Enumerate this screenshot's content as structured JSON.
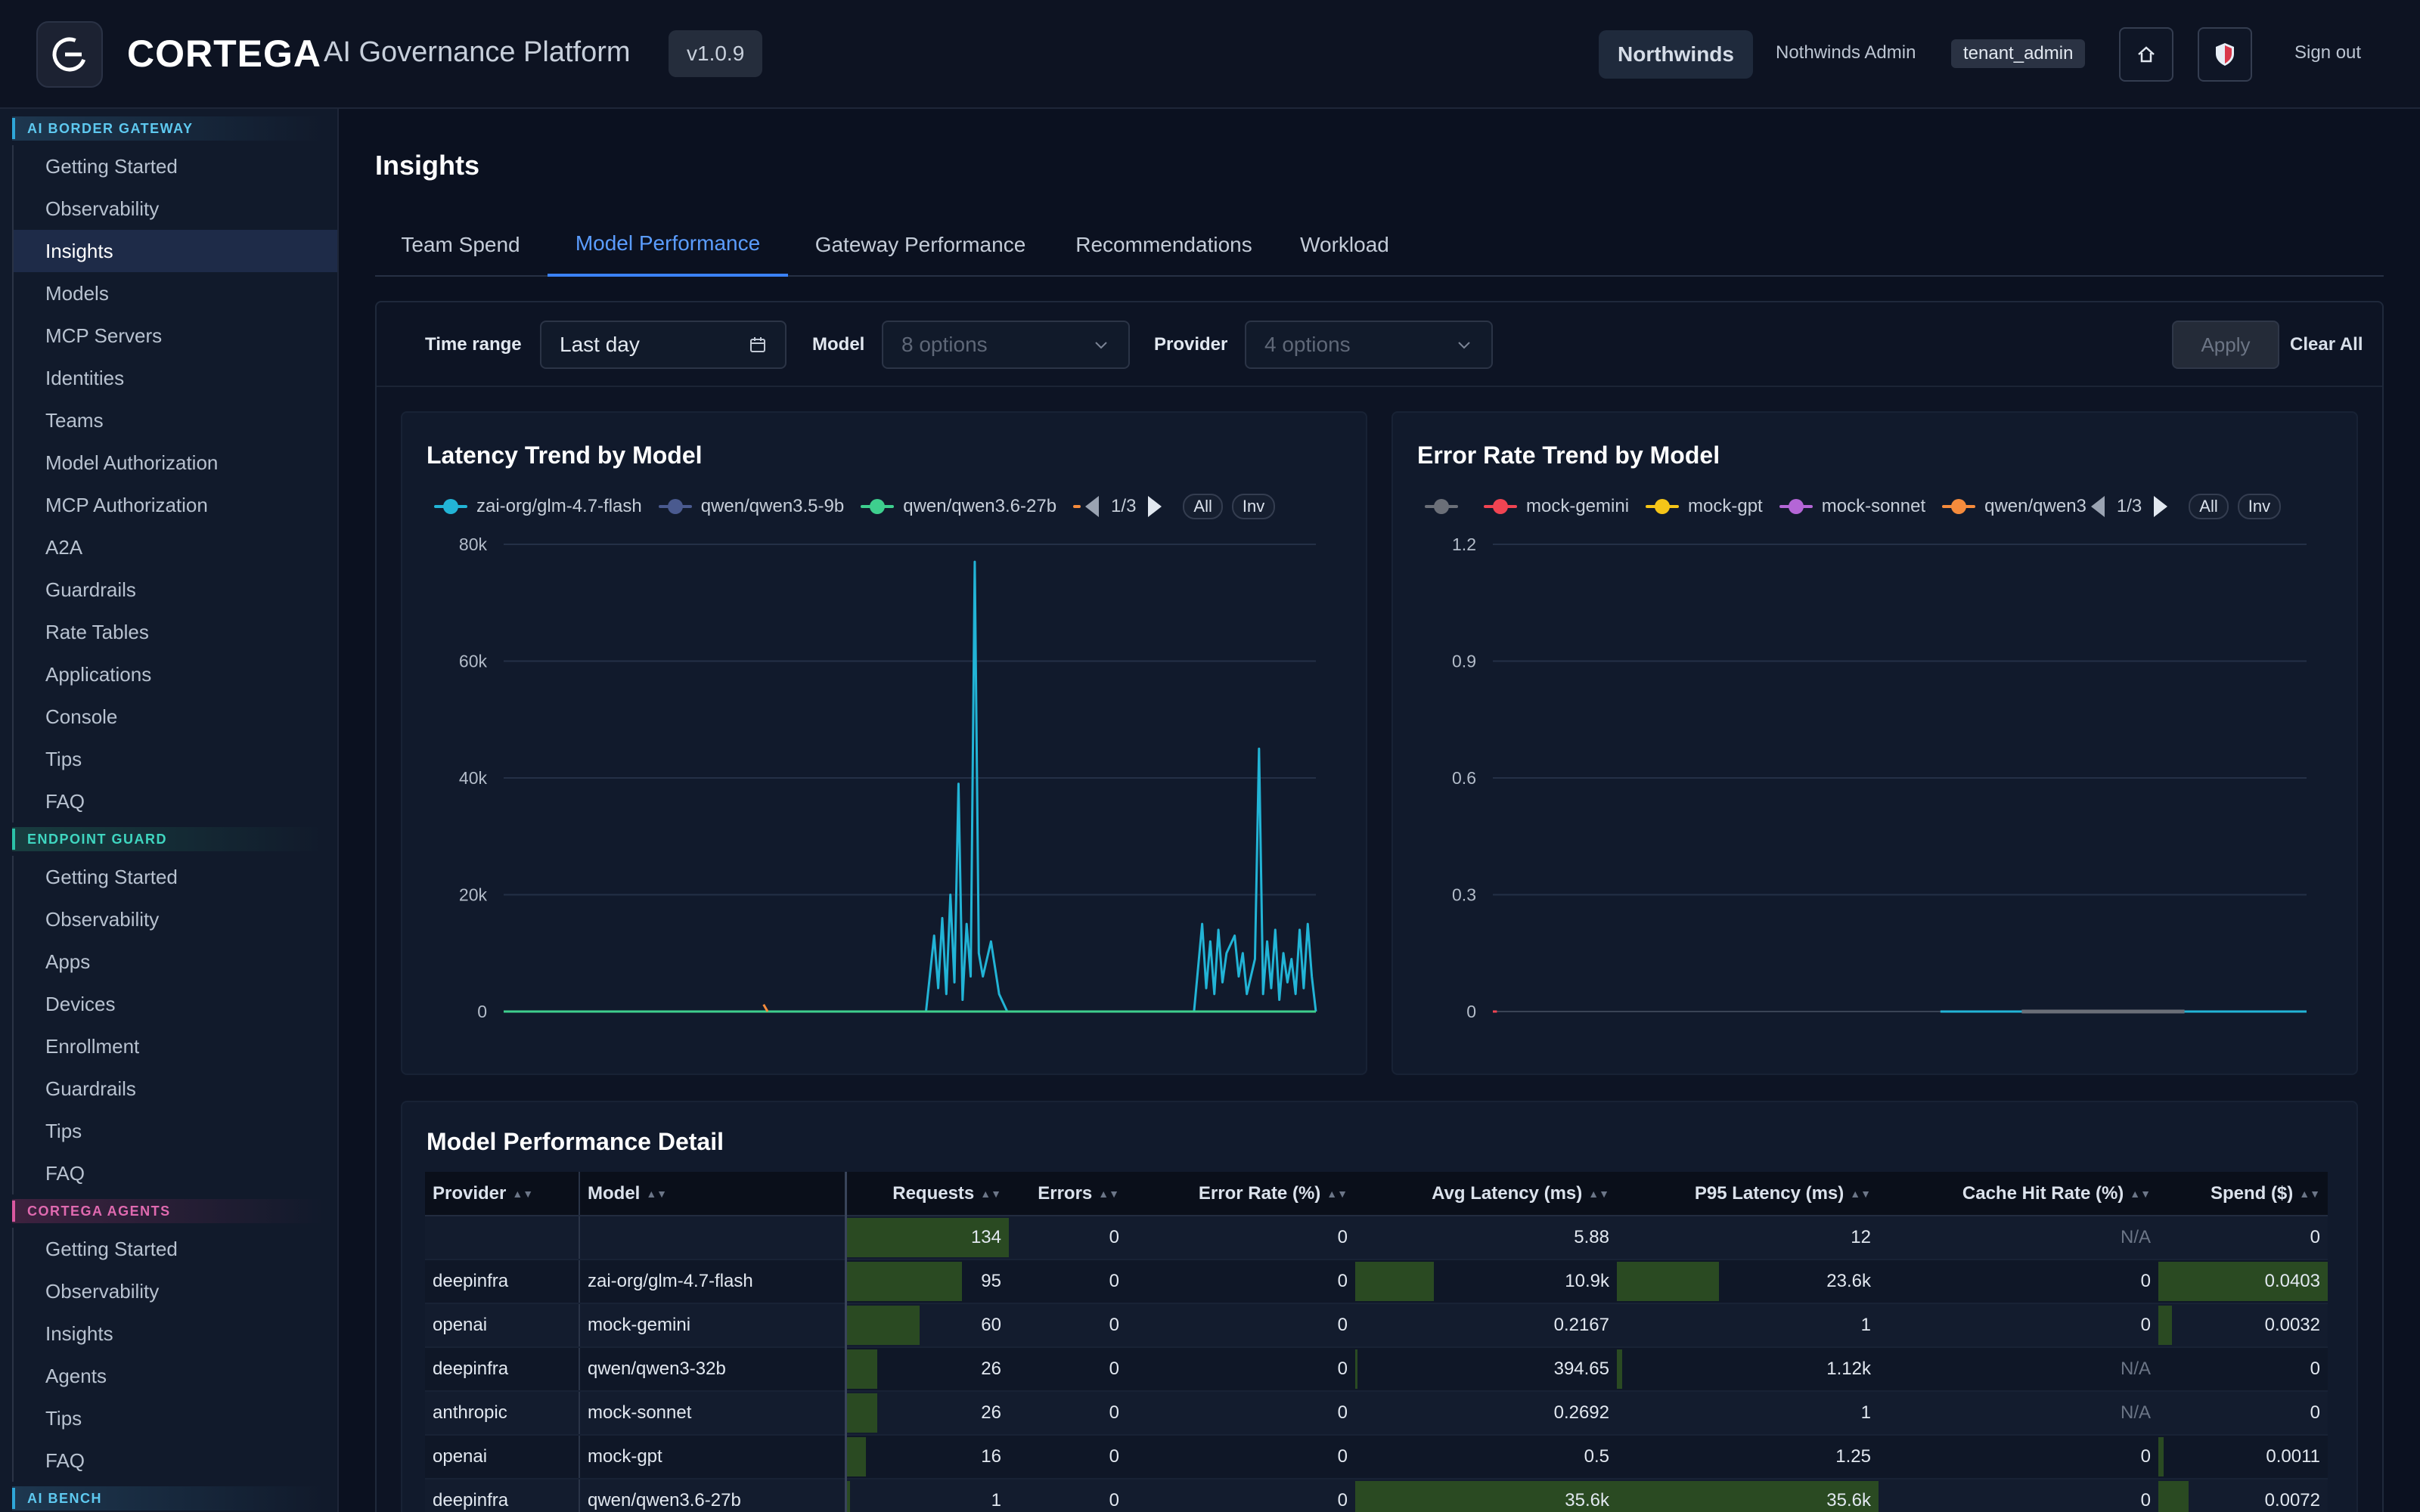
{
  "header": {
    "brand": "CORTEGA",
    "subtitle": "AI Governance Platform",
    "version": "v1.0.9",
    "tenant": "Northwinds",
    "user_name": "Nothwinds Admin",
    "role": "tenant_admin",
    "home_icon": "home-icon",
    "shield_icon": "shield-icon",
    "sign_out": "Sign out"
  },
  "sidebar": {
    "sections": [
      {
        "title": "AI BORDER GATEWAY",
        "items": [
          "Getting Started",
          "Observability",
          "Insights",
          "Models",
          "MCP Servers",
          "Identities",
          "Teams",
          "Model Authorization",
          "MCP Authorization",
          "A2A",
          "Guardrails",
          "Rate Tables",
          "Applications",
          "Console",
          "Tips",
          "FAQ"
        ]
      },
      {
        "title": "ENDPOINT GUARD",
        "items": [
          "Getting Started",
          "Observability",
          "Apps",
          "Devices",
          "Enrollment",
          "Guardrails",
          "Tips",
          "FAQ"
        ]
      },
      {
        "title": "CORTEGA AGENTS",
        "items": [
          "Getting Started",
          "Observability",
          "Insights",
          "Agents",
          "Tips",
          "FAQ"
        ]
      },
      {
        "title": "AI BENCH",
        "items": []
      }
    ],
    "active": "Insights"
  },
  "page": {
    "title": "Insights",
    "tabs": [
      "Team Spend",
      "Model Performance",
      "Gateway Performance",
      "Recommendations",
      "Workload"
    ],
    "active_tab": "Model Performance"
  },
  "filters": {
    "time_range_label": "Time range",
    "time_range_value": "Last day",
    "model_label": "Model",
    "model_placeholder": "8 options",
    "provider_label": "Provider",
    "provider_placeholder": "4 options",
    "apply": "Apply",
    "clear_all": "Clear All"
  },
  "colors": {
    "accent": "#3b82f6",
    "zai": "#22b4d6",
    "qwen35": "#4a5a8f",
    "qwen36": "#3ecf8e",
    "orange": "#f58b3c",
    "gemini": "#f04452",
    "gpt": "#f5c518",
    "sonnet": "#b466d6",
    "gray": "#6b6f78",
    "bar": "#2a4a22"
  },
  "chart_data": [
    {
      "type": "line",
      "title": "Latency Trend by Model",
      "legend": {
        "items": [
          "zai-org/glm-4.7-flash",
          "qwen/qwen3.5-9b",
          "qwen/qwen3.6-27b"
        ],
        "page": "1/3",
        "all": "All",
        "inv": "Inv"
      },
      "ylim": [
        0,
        80000
      ],
      "yticks": [
        "0",
        "20k",
        "40k",
        "60k",
        "80k"
      ],
      "series": [
        {
          "name": "zai-org/glm-4.7-flash",
          "color": "#22b4d6",
          "x": [
            0.0,
            0.05,
            0.1,
            0.15,
            0.2,
            0.25,
            0.3,
            0.35,
            0.4,
            0.45,
            0.5,
            0.52,
            0.53,
            0.535,
            0.54,
            0.545,
            0.55,
            0.555,
            0.56,
            0.565,
            0.57,
            0.575,
            0.58,
            0.585,
            0.59,
            0.6,
            0.61,
            0.62,
            0.65,
            0.7,
            0.75,
            0.8,
            0.85,
            0.86,
            0.865,
            0.87,
            0.875,
            0.88,
            0.885,
            0.89,
            0.9,
            0.905,
            0.91,
            0.915,
            0.92,
            0.925,
            0.93,
            0.935,
            0.94,
            0.945,
            0.95,
            0.955,
            0.96,
            0.965,
            0.97,
            0.975,
            0.98,
            0.985,
            0.99,
            0.995,
            1.0
          ],
          "y": [
            0,
            0,
            0,
            0,
            0,
            0,
            0,
            0,
            0,
            0,
            0,
            0,
            13000,
            4000,
            16000,
            3000,
            20000,
            5000,
            39000,
            2000,
            15000,
            6000,
            77000,
            10000,
            6000,
            12000,
            3000,
            0,
            0,
            0,
            0,
            0,
            0,
            15000,
            4000,
            12000,
            3000,
            14000,
            5000,
            10000,
            13000,
            6000,
            10000,
            3000,
            6000,
            9000,
            45000,
            3000,
            12000,
            4000,
            14000,
            2000,
            10000,
            5000,
            9000,
            3000,
            14000,
            4000,
            15000,
            6000,
            0
          ]
        },
        {
          "name": "qwen/qwen3.5-9b",
          "color": "#4a5a8f",
          "x": [
            0.0,
            1.0
          ],
          "y": [
            0,
            0
          ]
        },
        {
          "name": "qwen/qwen3.6-27b",
          "color": "#3ecf8e",
          "x": [
            0.0,
            1.0
          ],
          "y": [
            0,
            0
          ]
        },
        {
          "name": "qwen/qwen3-32b",
          "color": "#f58b3c",
          "x": [
            0.32,
            0.325
          ],
          "y": [
            1200,
            0
          ]
        }
      ]
    },
    {
      "type": "line",
      "title": "Error Rate Trend by Model",
      "legend": {
        "items": [
          "mock-gemini",
          "mock-gpt",
          "mock-sonnet",
          "qwen/qwen3"
        ],
        "page": "1/3",
        "all": "All",
        "inv": "Inv"
      },
      "ylim": [
        0,
        1.2
      ],
      "yticks": [
        "0",
        "0.3",
        "0.6",
        "0.9",
        "1.2"
      ],
      "series": [
        {
          "name": "mock-gemini",
          "color": "#f04452",
          "x": [
            0.0,
            0.005
          ],
          "y": [
            0,
            0
          ]
        },
        {
          "name": "zai-org/glm-4.7-flash",
          "color": "#22b4d6",
          "x": [
            0.55,
            0.6,
            0.82,
            1.0
          ],
          "y": [
            0,
            0,
            0,
            0
          ]
        },
        {
          "name": "gray",
          "color": "#6b6f78",
          "x": [
            0.65,
            0.85
          ],
          "y": [
            0,
            0
          ]
        }
      ]
    }
  ],
  "table": {
    "title": "Model Performance Detail",
    "columns": [
      "Provider",
      "Model",
      "Requests",
      "Errors",
      "Error Rate (%)",
      "Avg Latency (ms)",
      "P95 Latency (ms)",
      "Cache Hit Rate (%)",
      "Spend ($)"
    ],
    "rows": [
      {
        "provider": "",
        "model": "",
        "requests": "134",
        "errors": "0",
        "error_rate": "0",
        "avg_latency": "5.88",
        "p95": "12",
        "cache": "N/A",
        "spend": "0",
        "req_frac": 1.0,
        "avg_frac": 0.0,
        "p95_frac": 0.0,
        "spend_frac": 0.0
      },
      {
        "provider": "deepinfra",
        "model": "zai-org/glm-4.7-flash",
        "requests": "95",
        "errors": "0",
        "error_rate": "0",
        "avg_latency": "10.9k",
        "p95": "23.6k",
        "cache": "0",
        "spend": "0.0403",
        "req_frac": 0.71,
        "avg_frac": 0.3,
        "p95_frac": 0.39,
        "spend_frac": 1.0
      },
      {
        "provider": "openai",
        "model": "mock-gemini",
        "requests": "60",
        "errors": "0",
        "error_rate": "0",
        "avg_latency": "0.2167",
        "p95": "1",
        "cache": "0",
        "spend": "0.0032",
        "req_frac": 0.45,
        "avg_frac": 0.0,
        "p95_frac": 0.0,
        "spend_frac": 0.08
      },
      {
        "provider": "deepinfra",
        "model": "qwen/qwen3-32b",
        "requests": "26",
        "errors": "0",
        "error_rate": "0",
        "avg_latency": "394.65",
        "p95": "1.12k",
        "cache": "N/A",
        "spend": "0",
        "req_frac": 0.19,
        "avg_frac": 0.01,
        "p95_frac": 0.02,
        "spend_frac": 0.0
      },
      {
        "provider": "anthropic",
        "model": "mock-sonnet",
        "requests": "26",
        "errors": "0",
        "error_rate": "0",
        "avg_latency": "0.2692",
        "p95": "1",
        "cache": "N/A",
        "spend": "0",
        "req_frac": 0.19,
        "avg_frac": 0.0,
        "p95_frac": 0.0,
        "spend_frac": 0.0
      },
      {
        "provider": "openai",
        "model": "mock-gpt",
        "requests": "16",
        "errors": "0",
        "error_rate": "0",
        "avg_latency": "0.5",
        "p95": "1.25",
        "cache": "0",
        "spend": "0.0011",
        "req_frac": 0.12,
        "avg_frac": 0.0,
        "p95_frac": 0.0,
        "spend_frac": 0.03
      },
      {
        "provider": "deepinfra",
        "model": "qwen/qwen3.6-27b",
        "requests": "1",
        "errors": "0",
        "error_rate": "0",
        "avg_latency": "35.6k",
        "p95": "35.6k",
        "cache": "0",
        "spend": "0.0072",
        "req_frac": 0.02,
        "avg_frac": 1.0,
        "p95_frac": 1.0,
        "spend_frac": 0.18
      }
    ]
  }
}
